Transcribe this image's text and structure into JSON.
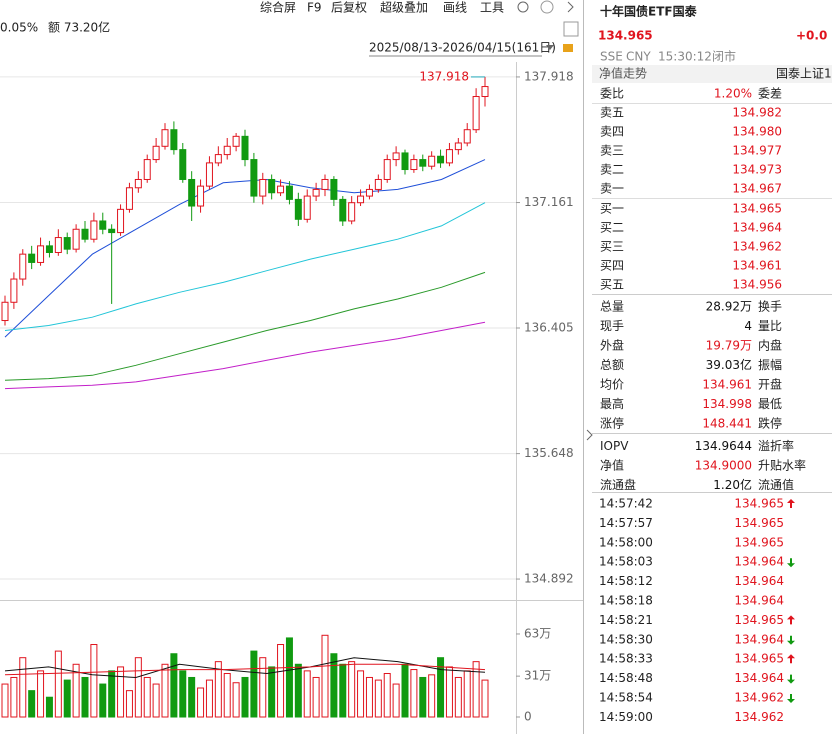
{
  "toolbar": {
    "change": "0.05%",
    "amount": "额 73.20亿",
    "buttons": [
      "综合屏",
      "F9",
      "后复权",
      "超级叠加",
      "画线",
      "工具"
    ],
    "range": "2025/08/13-2026/04/15(161日)"
  },
  "kline": {
    "max_label": "137.918",
    "ylim": [
      134.826,
      138.008
    ],
    "yticks": [
      137.918,
      137.161,
      136.405,
      135.648,
      134.892
    ],
    "up_color": "#e0141e",
    "down_color": "#119a11",
    "candles": [
      {
        "o": 136.45,
        "h": 136.6,
        "l": 136.42,
        "c": 136.56
      },
      {
        "o": 136.56,
        "h": 136.74,
        "l": 136.52,
        "c": 136.7
      },
      {
        "o": 136.7,
        "h": 136.88,
        "l": 136.66,
        "c": 136.85
      },
      {
        "o": 136.85,
        "h": 136.9,
        "l": 136.76,
        "c": 136.8
      },
      {
        "o": 136.8,
        "h": 136.95,
        "l": 136.78,
        "c": 136.9
      },
      {
        "o": 136.9,
        "h": 136.93,
        "l": 136.83,
        "c": 136.86
      },
      {
        "o": 136.86,
        "h": 137.0,
        "l": 136.84,
        "c": 136.95
      },
      {
        "o": 136.95,
        "h": 136.98,
        "l": 136.85,
        "c": 136.88
      },
      {
        "o": 136.88,
        "h": 137.03,
        "l": 136.86,
        "c": 137.0
      },
      {
        "o": 137.0,
        "h": 137.05,
        "l": 136.92,
        "c": 136.94
      },
      {
        "o": 136.94,
        "h": 137.1,
        "l": 136.92,
        "c": 137.05
      },
      {
        "o": 137.05,
        "h": 137.1,
        "l": 136.97,
        "c": 137.0
      },
      {
        "o": 137.0,
        "h": 137.03,
        "l": 136.55,
        "c": 136.98
      },
      {
        "o": 136.98,
        "h": 137.15,
        "l": 136.96,
        "c": 137.12
      },
      {
        "o": 137.12,
        "h": 137.28,
        "l": 137.1,
        "c": 137.25
      },
      {
        "o": 137.25,
        "h": 137.35,
        "l": 137.22,
        "c": 137.3
      },
      {
        "o": 137.3,
        "h": 137.45,
        "l": 137.28,
        "c": 137.42
      },
      {
        "o": 137.42,
        "h": 137.55,
        "l": 137.4,
        "c": 137.5
      },
      {
        "o": 137.5,
        "h": 137.64,
        "l": 137.48,
        "c": 137.6
      },
      {
        "o": 137.6,
        "h": 137.65,
        "l": 137.45,
        "c": 137.48
      },
      {
        "o": 137.48,
        "h": 137.52,
        "l": 137.28,
        "c": 137.3
      },
      {
        "o": 137.3,
        "h": 137.35,
        "l": 137.05,
        "c": 137.14
      },
      {
        "o": 137.14,
        "h": 137.3,
        "l": 137.1,
        "c": 137.26
      },
      {
        "o": 137.26,
        "h": 137.44,
        "l": 137.24,
        "c": 137.4
      },
      {
        "o": 137.4,
        "h": 137.5,
        "l": 137.38,
        "c": 137.45
      },
      {
        "o": 137.45,
        "h": 137.55,
        "l": 137.42,
        "c": 137.5
      },
      {
        "o": 137.5,
        "h": 137.58,
        "l": 137.47,
        "c": 137.56
      },
      {
        "o": 137.56,
        "h": 137.6,
        "l": 137.38,
        "c": 137.42
      },
      {
        "o": 137.42,
        "h": 137.46,
        "l": 137.16,
        "c": 137.2
      },
      {
        "o": 137.2,
        "h": 137.34,
        "l": 137.15,
        "c": 137.3
      },
      {
        "o": 137.3,
        "h": 137.33,
        "l": 137.18,
        "c": 137.22
      },
      {
        "o": 137.22,
        "h": 137.3,
        "l": 137.2,
        "c": 137.26
      },
      {
        "o": 137.26,
        "h": 137.29,
        "l": 137.15,
        "c": 137.18
      },
      {
        "o": 137.18,
        "h": 137.22,
        "l": 137.02,
        "c": 137.06
      },
      {
        "o": 137.06,
        "h": 137.24,
        "l": 137.04,
        "c": 137.2
      },
      {
        "o": 137.2,
        "h": 137.28,
        "l": 137.17,
        "c": 137.24
      },
      {
        "o": 137.24,
        "h": 137.33,
        "l": 137.2,
        "c": 137.3
      },
      {
        "o": 137.3,
        "h": 137.32,
        "l": 137.14,
        "c": 137.18
      },
      {
        "o": 137.18,
        "h": 137.2,
        "l": 137.02,
        "c": 137.05
      },
      {
        "o": 137.05,
        "h": 137.2,
        "l": 137.03,
        "c": 137.16
      },
      {
        "o": 137.16,
        "h": 137.24,
        "l": 137.14,
        "c": 137.2
      },
      {
        "o": 137.2,
        "h": 137.27,
        "l": 137.18,
        "c": 137.24
      },
      {
        "o": 137.24,
        "h": 137.33,
        "l": 137.22,
        "c": 137.3
      },
      {
        "o": 137.3,
        "h": 137.45,
        "l": 137.28,
        "c": 137.42
      },
      {
        "o": 137.42,
        "h": 137.5,
        "l": 137.38,
        "c": 137.46
      },
      {
        "o": 137.46,
        "h": 137.48,
        "l": 137.33,
        "c": 137.36
      },
      {
        "o": 137.36,
        "h": 137.45,
        "l": 137.34,
        "c": 137.42
      },
      {
        "o": 137.42,
        "h": 137.45,
        "l": 137.35,
        "c": 137.38
      },
      {
        "o": 137.38,
        "h": 137.47,
        "l": 137.36,
        "c": 137.44
      },
      {
        "o": 137.44,
        "h": 137.48,
        "l": 137.37,
        "c": 137.4
      },
      {
        "o": 137.4,
        "h": 137.52,
        "l": 137.38,
        "c": 137.48
      },
      {
        "o": 137.48,
        "h": 137.55,
        "l": 137.45,
        "c": 137.52
      },
      {
        "o": 137.52,
        "h": 137.64,
        "l": 137.5,
        "c": 137.6
      },
      {
        "o": 137.6,
        "h": 137.85,
        "l": 137.58,
        "c": 137.8
      },
      {
        "o": 137.8,
        "h": 137.918,
        "l": 137.74,
        "c": 137.86
      }
    ],
    "ma": [
      {
        "color": "#1f4fd8",
        "values": [
          136.35,
          136.6,
          136.85,
          137.0,
          137.15,
          137.28,
          137.3,
          137.25,
          137.22,
          137.24,
          137.3,
          137.42
        ]
      },
      {
        "color": "#22c5d8",
        "values": [
          136.39,
          136.42,
          136.47,
          136.55,
          136.62,
          136.68,
          136.75,
          136.82,
          136.88,
          136.94,
          137.02,
          137.16
        ]
      },
      {
        "color": "#2a9a2a",
        "values": [
          136.09,
          136.1,
          136.12,
          136.18,
          136.25,
          136.32,
          136.39,
          136.45,
          136.52,
          136.58,
          136.65,
          136.74
        ]
      },
      {
        "color": "#c21fc9",
        "values": [
          136.04,
          136.05,
          136.06,
          136.08,
          136.12,
          136.16,
          136.21,
          136.26,
          136.3,
          136.34,
          136.39,
          136.44
        ]
      }
    ]
  },
  "volume": {
    "ylim": [
      0,
      73.6
    ],
    "yticks": [
      {
        "value": 63,
        "label": "63万"
      },
      {
        "value": 31,
        "label": "31万"
      },
      0
    ],
    "values": [
      25,
      30,
      45,
      20,
      35,
      15,
      50,
      28,
      40,
      30,
      55,
      25,
      35,
      38,
      20,
      45,
      30,
      25,
      40,
      48,
      35,
      30,
      22,
      28,
      42,
      33,
      26,
      30,
      50,
      45,
      38,
      55,
      60,
      40,
      35,
      30,
      62,
      48,
      40,
      42,
      35,
      30,
      28,
      33,
      25,
      40,
      36,
      30,
      32,
      45,
      38,
      30,
      35,
      42,
      28
    ],
    "ma": [
      {
        "color": "#111111",
        "values": [
          35,
          38,
          32,
          30,
          40,
          36,
          33,
          38,
          45,
          42,
          36,
          34
        ]
      },
      {
        "color": "#e0141e",
        "values": [
          32,
          33,
          34,
          35,
          36,
          36,
          37,
          38,
          40,
          40,
          38,
          36
        ]
      }
    ]
  },
  "quote": {
    "title": "十年国债ETF国泰",
    "price": "134.965",
    "change": "+0.0",
    "exchange": "SSE",
    "currency": "CNY",
    "time": "15:30:12",
    "status": "闭市",
    "tab": "净值走势",
    "related": "国泰上证1",
    "ratio_label": "委比",
    "ratio": "1.20%",
    "diff_label": "委差",
    "book": [
      [
        "卖五",
        "134.982"
      ],
      [
        "卖四",
        "134.980"
      ],
      [
        "卖三",
        "134.977"
      ],
      [
        "卖二",
        "134.973"
      ],
      [
        "卖一",
        "134.967"
      ],
      [
        "买一",
        "134.965"
      ],
      [
        "买二",
        "134.964"
      ],
      [
        "买三",
        "134.962"
      ],
      [
        "买四",
        "134.961"
      ],
      [
        "买五",
        "134.956"
      ]
    ],
    "stats": [
      {
        "label": "总量",
        "value": "28.92万",
        "label2": "换手",
        "color": "#111111"
      },
      {
        "label": "现手",
        "value": "4",
        "label2": "量比",
        "color": "#111111"
      },
      {
        "label": "外盘",
        "value": "19.79万",
        "label2": "内盘",
        "color": "#e0141e"
      },
      {
        "label": "总额",
        "value": "39.03亿",
        "label2": "振幅",
        "color": "#111111"
      },
      {
        "label": "均价",
        "value": "134.961",
        "label2": "开盘",
        "color": "#e0141e"
      },
      {
        "label": "最高",
        "value": "134.998",
        "label2": "最低",
        "color": "#e0141e"
      },
      {
        "label": "涨停",
        "value": "148.441",
        "label2": "跌停",
        "color": "#e0141e"
      },
      {
        "label": "IOPV",
        "value": "134.9644",
        "label2": "溢折率",
        "color": "#111111"
      },
      {
        "label": "净值",
        "value": "134.9000",
        "label2": "升贴水率",
        "color": "#e0141e"
      },
      {
        "label": "流通盘",
        "value": "1.20亿",
        "label2": "流通值",
        "color": "#111111"
      }
    ],
    "ticks": [
      {
        "time": "14:57:42",
        "price": "134.965",
        "dir": "up"
      },
      {
        "time": "14:57:57",
        "price": "134.965",
        "dir": "none"
      },
      {
        "time": "14:58:00",
        "price": "134.965",
        "dir": "none"
      },
      {
        "time": "14:58:03",
        "price": "134.964",
        "dir": "down"
      },
      {
        "time": "14:58:12",
        "price": "134.964",
        "dir": "none"
      },
      {
        "time": "14:58:18",
        "price": "134.964",
        "dir": "none"
      },
      {
        "time": "14:58:21",
        "price": "134.965",
        "dir": "up"
      },
      {
        "time": "14:58:30",
        "price": "134.964",
        "dir": "down"
      },
      {
        "time": "14:58:33",
        "price": "134.965",
        "dir": "up"
      },
      {
        "time": "14:58:48",
        "price": "134.964",
        "dir": "down"
      },
      {
        "time": "14:58:54",
        "price": "134.962",
        "dir": "down"
      },
      {
        "time": "14:59:00",
        "price": "134.962",
        "dir": "none"
      }
    ]
  }
}
